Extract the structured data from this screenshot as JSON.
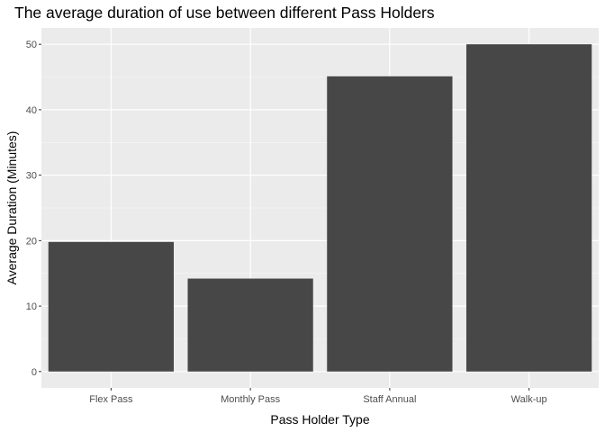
{
  "chart_data": {
    "type": "bar",
    "title": "The average duration of use between different Pass Holders",
    "xlabel": "Pass Holder Type",
    "ylabel": "Average Duration (Minutes)",
    "categories": [
      "Flex Pass",
      "Monthly Pass",
      "Staff Annual",
      "Walk-up"
    ],
    "values": [
      19.8,
      14.2,
      45.1,
      50.0
    ],
    "ylim": [
      -2.5,
      52.5
    ],
    "yticks": [
      0,
      10,
      20,
      30,
      40,
      50
    ],
    "grid": true,
    "colors": {
      "bar": "#474747",
      "panel": "#ebebeb",
      "grid_major": "#ffffff",
      "grid_minor": "#f5f5f5"
    }
  }
}
